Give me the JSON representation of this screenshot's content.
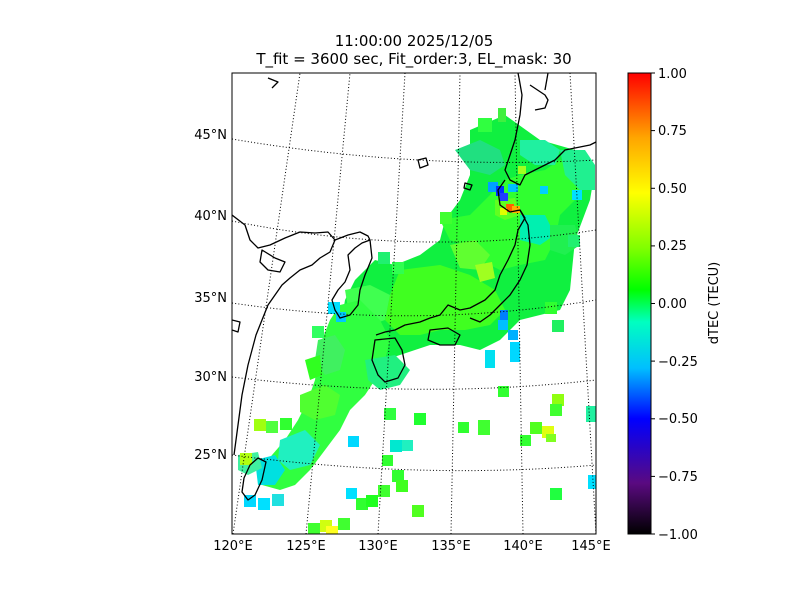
{
  "title": {
    "line1": "11:00:00 2025/12/05",
    "line2": "T_fit = 3600 sec, Fit_order:3, EL_mask: 30"
  },
  "map": {
    "lon_labels": [
      "120°E",
      "125°E",
      "130°E",
      "135°E",
      "140°E",
      "145°E"
    ],
    "lat_labels": [
      "45°N",
      "40°N",
      "35°N",
      "30°N",
      "25°N"
    ]
  },
  "colorbar": {
    "label": "dTEC (TECU)",
    "ticks": [
      "1.00",
      "0.75",
      "0.50",
      "0.25",
      "0.00",
      "−0.25",
      "−0.50",
      "−0.75",
      "−1.00"
    ],
    "colors": [
      "#000000",
      "#5a0a80",
      "#0000ff",
      "#00bfff",
      "#00ffc0",
      "#00ff00",
      "#80ff00",
      "#ffff00",
      "#ffa500",
      "#ff0000"
    ]
  }
}
